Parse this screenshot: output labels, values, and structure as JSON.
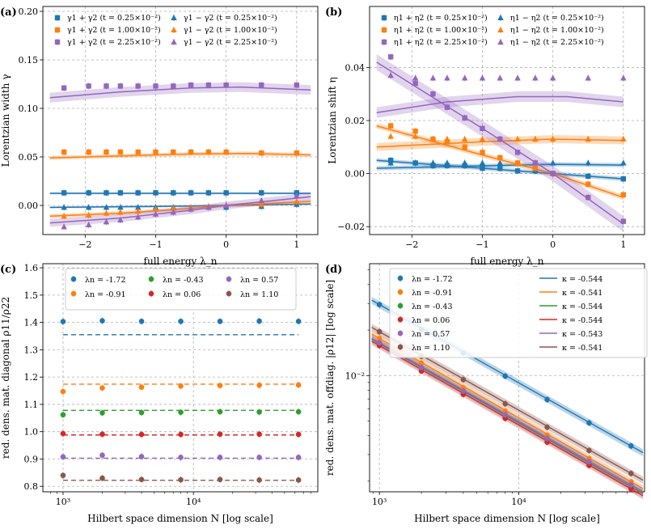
{
  "colors": {
    "blue": "#1f77b4",
    "orange": "#ff7f0e",
    "green": "#2ca02c",
    "red": "#d62728",
    "purple": "#9467bd",
    "brown": "#8c564b"
  },
  "chart_data": [
    {
      "panel": "(a)",
      "type": "scatter",
      "xlabel": "full energy λ_n",
      "ylabel": "Lorentzian width γ",
      "xlim": [
        -2.6,
        1.3
      ],
      "ylim": [
        -0.03,
        0.205
      ],
      "xticks": [
        -2,
        -1,
        0,
        1
      ],
      "xtick_labels": [
        "−2",
        "−1",
        "0",
        "1"
      ],
      "yticks": [
        0,
        0.05,
        0.1,
        0.15,
        0.2
      ],
      "ytick_labels": [
        "0.00",
        "0.05",
        "0.10",
        "0.15",
        "0.20"
      ],
      "legend": [
        "γ1 + γ2 (t = 0.25×10⁻²)",
        "γ1 − γ2 (t = 0.25×10⁻²)",
        "γ1 + γ2 (t = 1.00×10⁻²)",
        "γ1 − γ2 (t = 1.00×10⁻²)",
        "γ1 + γ2 (t = 2.25×10⁻²)",
        "γ1 − γ2 (t = 2.25×10⁻²)"
      ],
      "x": [
        -2.3,
        -1.95,
        -1.7,
        -1.5,
        -1.25,
        -1.0,
        -0.75,
        -0.5,
        -0.25,
        0.0,
        0.5,
        1.0
      ],
      "series": [
        {
          "name": "γ1 + γ2 (t = 0.25×10⁻²)",
          "color": "blue",
          "marker": "square",
          "values": [
            0.013,
            0.013,
            0.013,
            0.013,
            0.013,
            0.013,
            0.013,
            0.013,
            0.013,
            0.013,
            0.013,
            0.013
          ],
          "fit": [
            [
              -2.5,
              0.0125
            ],
            [
              1.2,
              0.0125
            ]
          ],
          "band": 0.001
        },
        {
          "name": "γ1 − γ2 (t = 0.25×10⁻²)",
          "color": "blue",
          "marker": "triangle",
          "values": [
            -0.002,
            -0.002,
            -0.002,
            -0.002,
            -0.002,
            -0.002,
            -0.002,
            -0.002,
            -0.002,
            -0.002,
            -0.001,
            0.001
          ],
          "fit": [
            [
              -2.5,
              -0.002
            ],
            [
              -1,
              -0.001
            ],
            [
              0,
              0.0
            ],
            [
              1.2,
              0.0015
            ]
          ],
          "band": 0.001
        },
        {
          "name": "γ1 + γ2 (t = 1.00×10⁻²)",
          "color": "orange",
          "marker": "square",
          "values": [
            0.055,
            0.055,
            0.055,
            0.055,
            0.055,
            0.055,
            0.055,
            0.055,
            0.055,
            0.055,
            0.054,
            0.054
          ],
          "fit": [
            [
              -2.5,
              0.049
            ],
            [
              -1.5,
              0.051
            ],
            [
              -0.5,
              0.053
            ],
            [
              0.3,
              0.0535
            ],
            [
              1.2,
              0.052
            ]
          ],
          "band": 0.002
        },
        {
          "name": "γ1 − γ2 (t = 1.00×10⁻²)",
          "color": "orange",
          "marker": "triangle",
          "values": [
            -0.011,
            -0.01,
            -0.008,
            -0.007,
            -0.006,
            -0.004,
            -0.003,
            -0.002,
            -0.001,
            0.0,
            0.001,
            0.004
          ],
          "fit": [
            [
              -2.5,
              -0.011
            ],
            [
              -1.5,
              -0.008
            ],
            [
              -0.5,
              -0.003
            ],
            [
              0,
              0.0
            ],
            [
              1.2,
              0.004
            ]
          ],
          "band": 0.002
        },
        {
          "name": "γ1 + γ2 (t = 2.25×10⁻²)",
          "color": "purple",
          "marker": "square",
          "values": [
            0.121,
            0.123,
            0.123,
            0.123,
            0.123,
            0.123,
            0.123,
            0.124,
            0.124,
            0.124,
            0.124,
            0.124
          ],
          "fit": [
            [
              -2.5,
              0.111
            ],
            [
              -1.5,
              0.117
            ],
            [
              -0.5,
              0.121
            ],
            [
              0.2,
              0.122
            ],
            [
              1.2,
              0.119
            ]
          ],
          "band": 0.005
        },
        {
          "name": "γ1 − γ2 (t = 2.25×10⁻²)",
          "color": "purple",
          "marker": "triangle",
          "values": [
            -0.022,
            -0.02,
            -0.017,
            -0.015,
            -0.012,
            -0.009,
            -0.007,
            -0.004,
            -0.002,
            0.0,
            0.005,
            0.01
          ],
          "fit": [
            [
              -2.5,
              -0.018
            ],
            [
              -1.5,
              -0.013
            ],
            [
              -0.5,
              -0.005
            ],
            [
              0,
              0.0
            ],
            [
              1.2,
              0.009
            ]
          ],
          "band": 0.004
        }
      ]
    },
    {
      "panel": "(b)",
      "type": "scatter",
      "xlabel": "full energy λ_n",
      "ylabel": "Lorentzian shift η",
      "xlim": [
        -2.6,
        1.3
      ],
      "ylim": [
        -0.023,
        0.063
      ],
      "xticks": [
        -2,
        -1,
        0,
        1
      ],
      "xtick_labels": [
        "−2",
        "−1",
        "0",
        "1"
      ],
      "yticks": [
        -0.02,
        0,
        0.02,
        0.04
      ],
      "ytick_labels": [
        "−0.02",
        "0.00",
        "0.02",
        "0.04"
      ],
      "legend": [
        "η1 + η2 (t = 0.25×10⁻²)",
        "η1 − η2 (t = 0.25×10⁻²)",
        "η1 + η2 (t = 1.00×10⁻²)",
        "η1 − η2 (t = 1.00×10⁻²)",
        "η1 + η2 (t = 2.25×10⁻²)",
        "η1 − η2 (t = 2.25×10⁻²)"
      ],
      "x": [
        -2.3,
        -1.95,
        -1.7,
        -1.5,
        -1.25,
        -1.0,
        -0.75,
        -0.5,
        -0.25,
        0.0,
        0.5,
        1.0
      ],
      "series": [
        {
          "name": "η1 + η2 (t = 0.25×10⁻²)",
          "color": "blue",
          "marker": "square",
          "values": [
            0.005,
            0.004,
            0.003,
            0.003,
            0.003,
            0.002,
            0.002,
            0.001,
            0.001,
            0.0,
            -0.001,
            -0.002
          ],
          "fit": [
            [
              -2.5,
              0.005
            ],
            [
              -1,
              0.002
            ],
            [
              0,
              0.0
            ],
            [
              1.0,
              -0.002
            ]
          ],
          "band": 0.0008
        },
        {
          "name": "η1 − η2 (t = 0.25×10⁻²)",
          "color": "blue",
          "marker": "triangle",
          "values": [
            0.004,
            0.004,
            0.004,
            0.004,
            0.004,
            0.004,
            0.004,
            0.004,
            0.004,
            0.004,
            0.004,
            0.004
          ],
          "fit": [
            [
              -2.5,
              0.002
            ],
            [
              0,
              0.0035
            ],
            [
              1.0,
              0.0032
            ]
          ],
          "band": 0.0008
        },
        {
          "name": "η1 + η2 (t = 1.00×10⁻²)",
          "color": "orange",
          "marker": "square",
          "values": [
            0.018,
            0.016,
            0.013,
            0.012,
            0.01,
            0.008,
            0.006,
            0.004,
            0.002,
            0.0,
            -0.004,
            -0.008
          ],
          "fit": [
            [
              -2.5,
              0.018
            ],
            [
              -1,
              0.007
            ],
            [
              0,
              0.0
            ],
            [
              1.0,
              -0.009
            ]
          ],
          "band": 0.001
        },
        {
          "name": "η1 − η2 (t = 1.00×10⁻²)",
          "color": "orange",
          "marker": "triangle",
          "values": [
            0.014,
            0.014,
            0.013,
            0.013,
            0.013,
            0.013,
            0.013,
            0.013,
            0.013,
            0.013,
            0.013,
            0.013
          ],
          "fit": [
            [
              -2.5,
              0.01
            ],
            [
              -1,
              0.012
            ],
            [
              0,
              0.013
            ],
            [
              1.0,
              0.0125
            ]
          ],
          "band": 0.0015
        },
        {
          "name": "η1 + η2 (t = 2.25×10⁻²)",
          "color": "purple",
          "marker": "square",
          "values": [
            0.044,
            0.034,
            0.03,
            0.025,
            0.021,
            0.017,
            0.013,
            0.008,
            0.004,
            0.0,
            -0.009,
            -0.018
          ],
          "fit": [
            [
              -2.5,
              0.042
            ],
            [
              -1,
              0.017
            ],
            [
              0,
              0.0
            ],
            [
              1.0,
              -0.019
            ]
          ],
          "band": 0.003
        },
        {
          "name": "η1 − η2 (t = 2.25×10⁻²)",
          "color": "purple",
          "marker": "triangle",
          "values": [
            0.037,
            0.036,
            0.036,
            0.036,
            0.036,
            0.036,
            0.036,
            0.036,
            0.036,
            0.036,
            0.036,
            0.036
          ],
          "fit": [
            [
              -2.5,
              0.023
            ],
            [
              -1.5,
              0.027
            ],
            [
              -0.5,
              0.029
            ],
            [
              0.2,
              0.029
            ],
            [
              1.0,
              0.027
            ]
          ],
          "band": 0.002
        }
      ]
    },
    {
      "panel": "(c)",
      "type": "scatter",
      "xlabel": "Hilbert space dimension N [log scale]",
      "ylabel": "red. dens. mat. diagonal ρ11/ρ22",
      "xscale": "log",
      "xlim": [
        700,
        90000
      ],
      "ylim": [
        0.78,
        1.615
      ],
      "xticks": [
        1000,
        10000
      ],
      "xtick_labels": [
        "10³",
        "10⁴"
      ],
      "yticks": [
        0.8,
        0.9,
        1.0,
        1.1,
        1.2,
        1.3,
        1.4,
        1.5,
        1.6
      ],
      "ytick_labels": [
        "0.8",
        "0.9",
        "1.0",
        "1.1",
        "1.2",
        "1.3",
        "1.4",
        "1.5",
        "1.6"
      ],
      "x": [
        1000,
        2000,
        4000,
        8000,
        16000,
        32000,
        64000
      ],
      "series": [
        {
          "name": "λn = -1.72",
          "color": "blue",
          "values": [
            1.403,
            1.406,
            1.404,
            1.404,
            1.404,
            1.405,
            1.404
          ],
          "ref": 1.355
        },
        {
          "name": "λn = -0.91",
          "color": "orange",
          "values": [
            1.147,
            1.16,
            1.163,
            1.167,
            1.169,
            1.17,
            1.171
          ],
          "ref": 1.174
        },
        {
          "name": "λn = -0.43",
          "color": "green",
          "values": [
            1.062,
            1.069,
            1.07,
            1.071,
            1.073,
            1.072,
            1.073
          ],
          "ref": 1.078
        },
        {
          "name": "λn = 0.06",
          "color": "red",
          "values": [
            0.993,
            0.991,
            0.99,
            0.99,
            0.991,
            0.991,
            0.99
          ],
          "ref": 0.988
        },
        {
          "name": "λn = 0.57",
          "color": "purple",
          "values": [
            0.908,
            0.914,
            0.909,
            0.906,
            0.906,
            0.906,
            0.906
          ],
          "ref": 0.903
        },
        {
          "name": "λn = 1.10",
          "color": "brown",
          "values": [
            0.84,
            0.83,
            0.825,
            0.824,
            0.825,
            0.823,
            0.823
          ],
          "ref": 0.822
        }
      ]
    },
    {
      "panel": "(d)",
      "type": "line",
      "xlabel": "Hilbert space dimension N [log scale]",
      "ylabel": "red. dens. mat. offdiag. |ρ12| [log scale]",
      "xscale": "log",
      "yscale": "log",
      "xlim": [
        850,
        80000
      ],
      "ylim": [
        0.0017,
        0.055
      ],
      "xticks": [
        1000,
        10000
      ],
      "xtick_labels": [
        "10³",
        "10⁴"
      ],
      "yticks": [
        0.01
      ],
      "ytick_labels": [
        "10⁻²"
      ],
      "x": [
        1000,
        2000,
        4000,
        8000,
        16000,
        32000,
        64000
      ],
      "series": [
        {
          "name": "λn = -1.72",
          "fit_label": "κ = -0.544",
          "color": "blue",
          "values": [
            0.0295,
            0.0202,
            0.0141,
            0.0099,
            0.00693,
            0.00486,
            0.00342
          ]
        },
        {
          "name": "λn = -0.91",
          "fit_label": "κ = -0.541",
          "color": "orange",
          "values": [
            0.0176,
            0.0121,
            0.0083,
            0.0058,
            0.00402,
            0.00282,
            0.00198
          ]
        },
        {
          "name": "λn = -0.43",
          "fit_label": "κ = -0.544",
          "color": "green",
          "values": [
            0.0163,
            0.0111,
            0.0077,
            0.0053,
            0.00372,
            0.00261,
            0.00184
          ]
        },
        {
          "name": "λn = 0.06",
          "fit_label": "κ = -0.544",
          "color": "red",
          "values": [
            0.0158,
            0.0107,
            0.0075,
            0.0052,
            0.00362,
            0.00254,
            0.00178
          ]
        },
        {
          "name": "λn = 0.57",
          "fit_label": "κ = -0.543",
          "color": "purple",
          "values": [
            0.0165,
            0.0113,
            0.0079,
            0.0055,
            0.00383,
            0.00268,
            0.00189
          ]
        },
        {
          "name": "λn = 1.10",
          "fit_label": "κ = -0.541",
          "color": "brown",
          "values": [
            0.0195,
            0.0134,
            0.0094,
            0.0065,
            0.00455,
            0.00319,
            0.00225
          ]
        }
      ]
    }
  ]
}
